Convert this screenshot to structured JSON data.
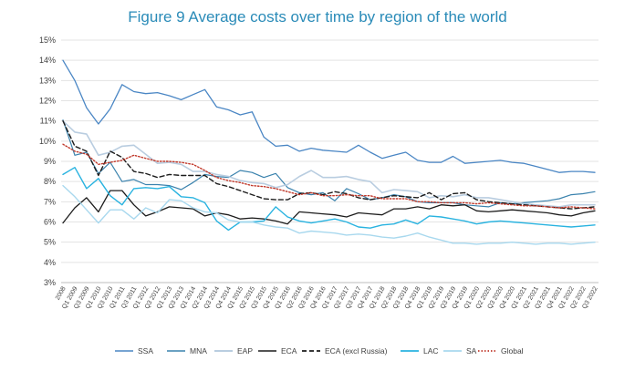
{
  "title_prefix": "Figure 9",
  "title_main": "Average costs over time by region of the world",
  "chart_data": {
    "type": "line",
    "ylim": [
      3,
      15
    ],
    "yticks": [
      "3%",
      "4%",
      "5%",
      "6%",
      "7%",
      "8%",
      "9%",
      "10%",
      "11%",
      "12%",
      "13%",
      "14%",
      "15%"
    ],
    "grid": true,
    "legend": "bottom",
    "categories": [
      "2008",
      "Q1 2009",
      "Q3 2009",
      "Q1 2010",
      "Q3 2010",
      "Q1 2011",
      "Q3 2011",
      "Q1 2012",
      "Q3 2012",
      "Q1 2013",
      "Q3 2013",
      "Q1 2014",
      "Q2 2014",
      "Q3 2014",
      "Q4 2014",
      "Q1 2015",
      "Q2 2015",
      "Q3 2015",
      "Q4 2015",
      "Q1 2016",
      "Q2 2016",
      "Q3 2016",
      "Q4 2016",
      "Q1 2017",
      "Q2 2017",
      "Q3 2017",
      "Q4 2017",
      "Q1 2018",
      "Q2 2018",
      "Q3 2018",
      "Q4 2018",
      "Q1 2019",
      "Q2 2019",
      "Q3 2019",
      "Q4 2019",
      "Q1 2020",
      "Q2 2020",
      "Q3 2020",
      "Q4 2020",
      "Q1 2021",
      "Q2 2021",
      "Q3 2021",
      "Q4 2021",
      "Q1 2022",
      "Q2 2022",
      "Q3 2022"
    ],
    "series": [
      {
        "name": "SSA",
        "color": "#4a86c4",
        "dash": "",
        "width": 1.3,
        "values": [
          14.0,
          13.0,
          11.65,
          10.85,
          11.6,
          12.8,
          12.45,
          12.35,
          12.4,
          12.25,
          12.05,
          12.3,
          12.55,
          11.7,
          11.55,
          11.3,
          11.45,
          10.2,
          9.75,
          9.8,
          9.5,
          9.65,
          9.55,
          9.5,
          9.45,
          9.8,
          9.45,
          9.15,
          9.3,
          9.45,
          9.05,
          8.95,
          8.95,
          9.25,
          8.9,
          8.95,
          9.0,
          9.05,
          8.95,
          8.9,
          8.75,
          8.6,
          8.45,
          8.5,
          8.5,
          8.45
        ]
      },
      {
        "name": "MNA",
        "color": "#3a82ad",
        "dash": "",
        "width": 1.2,
        "values": [
          11.05,
          9.3,
          9.45,
          8.4,
          8.95,
          8.0,
          8.1,
          7.85,
          7.85,
          7.8,
          7.6,
          7.95,
          8.35,
          8.25,
          8.2,
          8.55,
          8.45,
          8.2,
          8.4,
          7.7,
          7.45,
          7.35,
          7.45,
          7.05,
          7.65,
          7.4,
          7.1,
          7.2,
          7.35,
          7.25,
          7.0,
          6.95,
          6.95,
          6.95,
          6.85,
          6.8,
          6.75,
          6.95,
          6.9,
          6.95,
          7.0,
          7.05,
          7.15,
          7.35,
          7.4,
          7.5
        ]
      },
      {
        "name": "EAP",
        "color": "#b9cde0",
        "dash": "",
        "width": 1.6,
        "values": [
          11.0,
          10.45,
          10.35,
          9.3,
          9.45,
          9.75,
          9.8,
          9.35,
          8.9,
          8.95,
          8.85,
          8.5,
          8.5,
          8.35,
          8.25,
          8.05,
          7.95,
          7.9,
          7.7,
          7.85,
          8.25,
          8.55,
          8.2,
          8.2,
          8.25,
          8.1,
          8.0,
          7.45,
          7.6,
          7.55,
          7.5,
          7.2,
          7.3,
          7.25,
          7.35,
          7.2,
          7.2,
          7.1,
          7.0,
          6.9,
          6.85,
          6.8,
          6.75,
          6.85,
          6.85,
          6.85
        ]
      },
      {
        "name": "ECA",
        "color": "#1c1c1c",
        "dash": "",
        "width": 1.3,
        "values": [
          5.95,
          6.7,
          7.2,
          6.5,
          7.55,
          7.55,
          6.85,
          6.3,
          6.5,
          6.75,
          6.7,
          6.65,
          6.3,
          6.45,
          6.35,
          6.15,
          6.2,
          6.15,
          6.05,
          5.9,
          6.5,
          6.45,
          6.4,
          6.35,
          6.25,
          6.45,
          6.4,
          6.35,
          6.65,
          6.65,
          6.75,
          6.65,
          6.85,
          6.8,
          6.85,
          6.55,
          6.5,
          6.55,
          6.6,
          6.55,
          6.5,
          6.45,
          6.35,
          6.3,
          6.45,
          6.55
        ]
      },
      {
        "name": "ECA (excl Russia)",
        "color": "#1c1c1c",
        "dash": "5 3",
        "width": 1.4,
        "values": [
          11.0,
          9.75,
          9.5,
          8.3,
          9.5,
          9.2,
          8.5,
          8.4,
          8.2,
          8.35,
          8.3,
          8.3,
          8.3,
          7.9,
          7.75,
          7.55,
          7.35,
          7.15,
          7.1,
          7.1,
          7.4,
          7.45,
          7.35,
          7.5,
          7.4,
          7.2,
          7.1,
          7.2,
          7.3,
          7.25,
          7.2,
          7.45,
          7.1,
          7.4,
          7.45,
          7.1,
          7.0,
          6.95,
          6.9,
          6.85,
          6.8,
          6.75,
          6.7,
          6.65,
          6.7,
          6.75
        ]
      },
      {
        "name": "LAC",
        "color": "#29b3e0",
        "dash": "",
        "width": 1.4,
        "values": [
          8.35,
          8.7,
          7.65,
          8.15,
          7.3,
          6.85,
          7.65,
          7.7,
          7.65,
          7.75,
          7.25,
          7.2,
          6.95,
          6.05,
          5.6,
          6.0,
          6.0,
          6.05,
          6.75,
          6.25,
          6.05,
          5.95,
          6.05,
          6.15,
          6.0,
          5.75,
          5.7,
          5.85,
          5.9,
          6.1,
          5.9,
          6.3,
          6.25,
          6.15,
          6.05,
          5.9,
          6.0,
          6.05,
          6.0,
          5.95,
          5.9,
          5.85,
          5.8,
          5.75,
          5.8,
          5.85
        ]
      },
      {
        "name": "SA",
        "color": "#a8d8ee",
        "dash": "",
        "width": 1.4,
        "values": [
          7.8,
          7.25,
          6.6,
          5.95,
          6.6,
          6.6,
          6.15,
          6.7,
          6.45,
          7.1,
          7.05,
          6.7,
          6.5,
          6.45,
          6.1,
          6.0,
          6.0,
          5.85,
          5.75,
          5.7,
          5.45,
          5.55,
          5.5,
          5.45,
          5.35,
          5.4,
          5.35,
          5.25,
          5.2,
          5.3,
          5.45,
          5.25,
          5.1,
          4.95,
          4.95,
          4.9,
          4.95,
          4.95,
          5.0,
          4.95,
          4.9,
          4.95,
          4.95,
          4.9,
          4.95,
          5.0
        ]
      },
      {
        "name": "Global",
        "color": "#c0392b",
        "dash": "1.5 2",
        "width": 1.4,
        "values": [
          9.85,
          9.5,
          9.35,
          8.85,
          8.95,
          9.05,
          9.3,
          9.15,
          9.0,
          9.0,
          8.95,
          8.85,
          8.55,
          8.2,
          8.05,
          7.95,
          7.8,
          7.75,
          7.65,
          7.5,
          7.35,
          7.45,
          7.3,
          7.3,
          7.35,
          7.3,
          7.3,
          7.15,
          7.15,
          7.15,
          7.0,
          7.0,
          6.95,
          6.95,
          6.95,
          6.9,
          6.95,
          6.9,
          6.85,
          6.8,
          6.8,
          6.75,
          6.7,
          6.75,
          6.7,
          6.65
        ]
      }
    ]
  }
}
